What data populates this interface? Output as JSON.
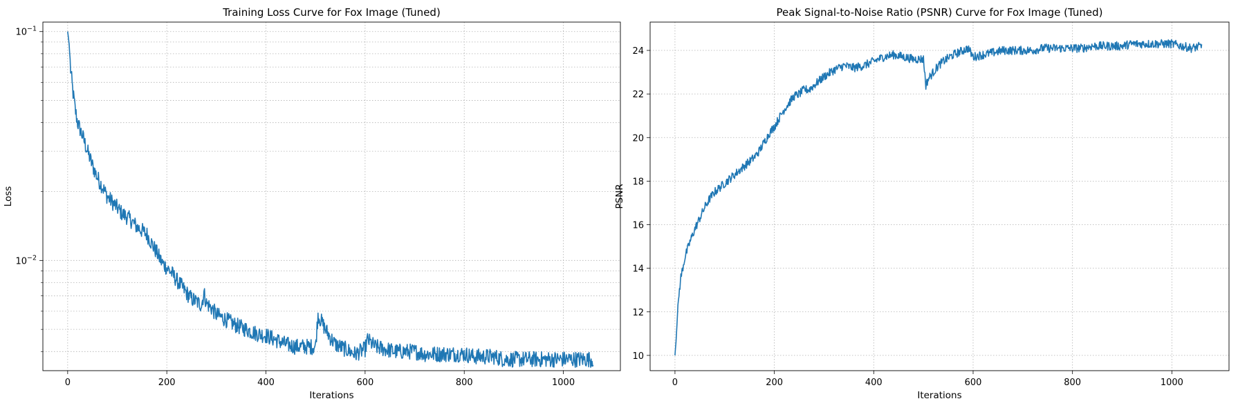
{
  "chart_data": [
    {
      "type": "line",
      "title": "Training Loss Curve for Fox Image (Tuned)",
      "xlabel": "Iterations",
      "ylabel": "Loss",
      "yscale": "log",
      "xlim": [
        -50,
        1115
      ],
      "ylim": [
        0.0033,
        0.11
      ],
      "xticks": [
        0,
        200,
        400,
        600,
        800,
        1000
      ],
      "xtick_labels": [
        "0",
        "200",
        "400",
        "600",
        "800",
        "1000"
      ],
      "yticks_major": [
        0.01,
        0.1
      ],
      "ytick_labels": [
        "10−2",
        "10−1"
      ],
      "yticks_minor": [
        0.004,
        0.005,
        0.006,
        0.007,
        0.008,
        0.009,
        0.02,
        0.03,
        0.04,
        0.05,
        0.06,
        0.07,
        0.08,
        0.09
      ],
      "grid": true,
      "series_color": "#1f77b4",
      "series": [
        {
          "x": [
            0,
            3,
            6,
            10,
            15,
            20,
            30,
            40,
            50,
            60,
            70,
            80,
            90,
            100,
            110,
            120,
            130,
            140,
            150,
            160,
            170,
            180,
            190,
            200,
            210,
            220,
            230,
            240,
            250,
            260,
            270,
            275,
            280,
            290,
            300,
            320,
            340,
            360,
            380,
            400,
            420,
            440,
            460,
            480,
            500,
            505,
            510,
            520,
            530,
            540,
            560,
            580,
            600,
            605,
            620,
            640,
            660,
            680,
            700,
            720,
            740,
            760,
            780,
            800,
            820,
            840,
            860,
            880,
            900,
            920,
            940,
            960,
            980,
            1000,
            1020,
            1040,
            1060
          ],
          "y": [
            0.1,
            0.088,
            0.068,
            0.056,
            0.046,
            0.04,
            0.035,
            0.03,
            0.026,
            0.023,
            0.021,
            0.019,
            0.018,
            0.017,
            0.016,
            0.0155,
            0.0148,
            0.014,
            0.0135,
            0.013,
            0.0118,
            0.0108,
            0.0098,
            0.0093,
            0.0088,
            0.0082,
            0.0077,
            0.0072,
            0.0068,
            0.0066,
            0.0064,
            0.0072,
            0.0065,
            0.0062,
            0.0058,
            0.0055,
            0.0052,
            0.005,
            0.0048,
            0.0047,
            0.0045,
            0.0043,
            0.0042,
            0.0042,
            0.0042,
            0.0058,
            0.0055,
            0.005,
            0.0046,
            0.0043,
            0.0041,
            0.0039,
            0.0041,
            0.0045,
            0.0042,
            0.0041,
            0.004,
            0.004,
            0.004,
            0.0039,
            0.0039,
            0.0039,
            0.0039,
            0.0039,
            0.0038,
            0.0038,
            0.0038,
            0.0037,
            0.0037,
            0.0037,
            0.0037,
            0.0037,
            0.0037,
            0.0037,
            0.0037,
            0.0037,
            0.0037
          ]
        }
      ]
    },
    {
      "type": "line",
      "title": "Peak Signal-to-Noise Ratio (PSNR) Curve for Fox Image (Tuned)",
      "xlabel": "Iterations",
      "ylabel": "PSNR",
      "xlim": [
        -50,
        1115
      ],
      "ylim": [
        9.3,
        25.3
      ],
      "xticks": [
        0,
        200,
        400,
        600,
        800,
        1000
      ],
      "xtick_labels": [
        "0",
        "200",
        "400",
        "600",
        "800",
        "1000"
      ],
      "yticks": [
        10,
        12,
        14,
        16,
        18,
        20,
        22,
        24
      ],
      "ytick_labels": [
        "10",
        "12",
        "14",
        "16",
        "18",
        "20",
        "22",
        "24"
      ],
      "grid": true,
      "series_color": "#1f77b4",
      "series": [
        {
          "x": [
            0,
            2,
            5,
            8,
            12,
            20,
            30,
            40,
            50,
            60,
            70,
            80,
            90,
            100,
            110,
            120,
            130,
            140,
            150,
            160,
            170,
            180,
            190,
            200,
            210,
            220,
            230,
            240,
            250,
            260,
            270,
            280,
            290,
            300,
            320,
            340,
            360,
            380,
            400,
            420,
            440,
            460,
            480,
            500,
            505,
            510,
            520,
            530,
            540,
            560,
            580,
            590,
            600,
            620,
            640,
            660,
            680,
            700,
            720,
            740,
            760,
            780,
            800,
            820,
            840,
            860,
            880,
            900,
            920,
            940,
            960,
            980,
            1000,
            1020,
            1040,
            1060
          ],
          "y": [
            10.0,
            10.6,
            11.8,
            12.8,
            13.6,
            14.5,
            15.2,
            15.8,
            16.3,
            16.8,
            17.2,
            17.5,
            17.7,
            17.9,
            18.1,
            18.3,
            18.5,
            18.7,
            18.9,
            19.1,
            19.4,
            19.8,
            20.2,
            20.5,
            20.9,
            21.3,
            21.6,
            21.9,
            22.0,
            22.2,
            22.2,
            22.4,
            22.6,
            22.8,
            23.1,
            23.3,
            23.2,
            23.3,
            23.5,
            23.7,
            23.8,
            23.7,
            23.6,
            23.6,
            22.4,
            22.7,
            23.0,
            23.3,
            23.5,
            23.8,
            24.0,
            24.1,
            23.7,
            23.8,
            23.9,
            24.0,
            24.0,
            24.0,
            24.0,
            24.1,
            24.1,
            24.1,
            24.1,
            24.1,
            24.2,
            24.2,
            24.2,
            24.2,
            24.3,
            24.3,
            24.3,
            24.3,
            24.3,
            24.2,
            24.1,
            24.2
          ]
        }
      ]
    }
  ]
}
